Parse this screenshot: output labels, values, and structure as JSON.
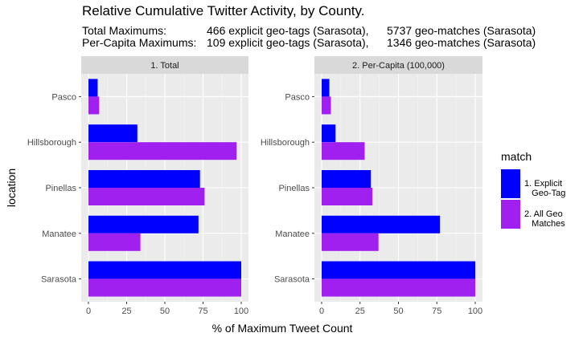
{
  "title": "Relative Cumulative Twitter Activity, by County.",
  "subtitle_rows": [
    {
      "label": "Total Maximums:",
      "explicit": "466 explicit geo-tags (Sarasota),",
      "geo": "5737 geo-matches (Sarasota)"
    },
    {
      "label": "Per-Capita Maximums:",
      "explicit": "109 explicit geo-tags (Sarasota),",
      "geo": "1346 geo-matches (Sarasota)"
    }
  ],
  "legend": {
    "title": "match",
    "items": [
      {
        "label": "1. Explicit\n   Geo-Tag",
        "color": "#0000FF"
      },
      {
        "label": "2. All Geo\n   Matches",
        "color": "#A020F0"
      }
    ]
  },
  "chart_data": {
    "type": "bar",
    "orientation": "horizontal",
    "xlabel": "% of Maximum Tweet Count",
    "ylabel": "location",
    "xlim": [
      0,
      100
    ],
    "xticks": [
      "0",
      "25",
      "50",
      "75",
      "100"
    ],
    "categories": [
      "Pasco",
      "Hillsborough",
      "Pinellas",
      "Manatee",
      "Sarasota"
    ],
    "series_names": [
      "1. Explicit Geo-Tag",
      "2. All Geo Matches"
    ],
    "colors": [
      "#0000FF",
      "#A020F0"
    ],
    "panels": [
      {
        "title": "1. Total",
        "series": [
          {
            "name": "1. Explicit Geo-Tag",
            "values": [
              6,
              32,
              73,
              72,
              100
            ]
          },
          {
            "name": "2. All Geo Matches",
            "values": [
              7,
              97,
              76,
              34,
              100
            ]
          }
        ]
      },
      {
        "title": "2. Per-Capita (100,000)",
        "series": [
          {
            "name": "1. Explicit Geo-Tag",
            "values": [
              5,
              9,
              32,
              77,
              100
            ]
          },
          {
            "name": "2. All Geo Matches",
            "values": [
              6,
              28,
              33,
              37,
              100
            ]
          }
        ]
      }
    ]
  }
}
